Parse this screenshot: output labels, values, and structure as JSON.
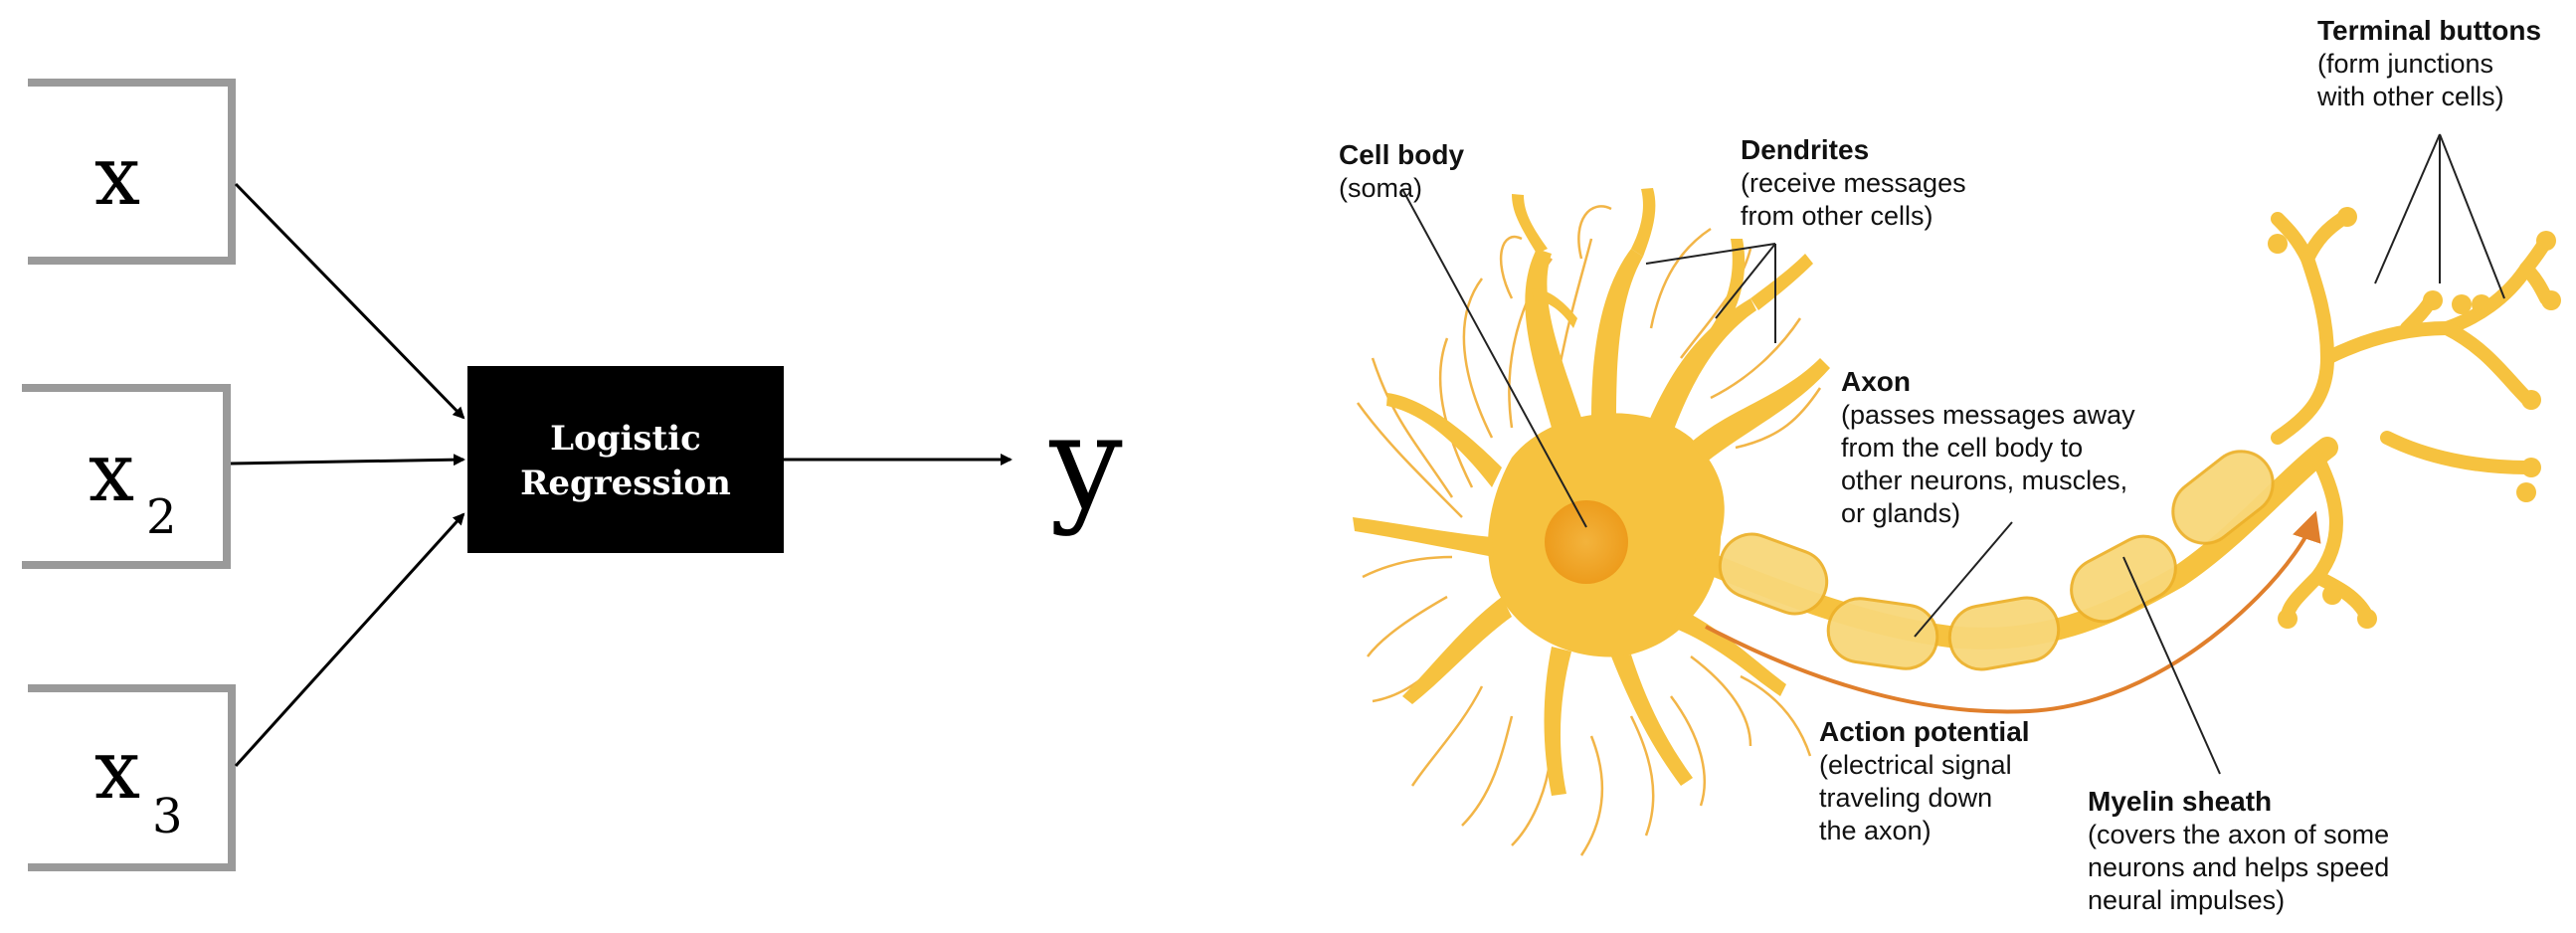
{
  "left_diagram": {
    "inputs": [
      {
        "symbol": "x",
        "subscript": ""
      },
      {
        "symbol": "x",
        "subscript": "2"
      },
      {
        "symbol": "x",
        "subscript": "3"
      }
    ],
    "model_label_line1": "Logistic",
    "model_label_line2": "Regression",
    "output_label": "y"
  },
  "neuron_diagram": {
    "cell_body": {
      "title": "Cell body",
      "desc": [
        "(soma)"
      ]
    },
    "dendrites": {
      "title": "Dendrites",
      "desc": [
        "(receive messages",
        "from other cells)"
      ]
    },
    "terminal_buttons": {
      "title": "Terminal buttons",
      "desc": [
        "(form junctions",
        "with other cells)"
      ]
    },
    "axon": {
      "title": "Axon",
      "desc": [
        "(passes messages away",
        "from the cell body to",
        "other neurons, muscles,",
        "or glands)"
      ]
    },
    "action_potential": {
      "title": "Action potential",
      "desc": [
        "(electrical signal",
        "traveling down",
        "the axon)"
      ]
    },
    "myelin_sheath": {
      "title": "Myelin sheath",
      "desc": [
        "(covers the axon of some",
        "neurons and helps speed",
        "neural impulses)"
      ]
    }
  },
  "colors": {
    "neuron": "#f6c23f",
    "neuron_dark": "#eeae1f",
    "myelin": "#f8d77a",
    "soma_nucleus": "#f0a21e",
    "action_arrow": "#e07f2c",
    "input_box_border": "#9a9a9a",
    "model_box": "#000000"
  }
}
